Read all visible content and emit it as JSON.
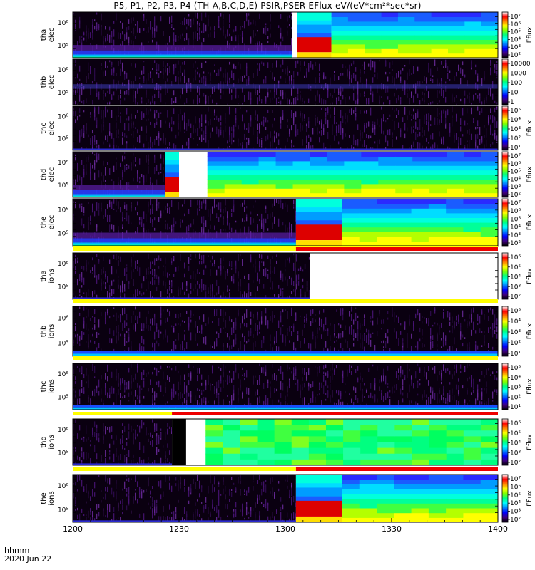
{
  "title": "P5, P1, P2, P3, P4 (TH-A,B,C,D,E) PSIR,PSER EFlux eV/(eV*cm²*sec*sr)",
  "footer": {
    "label": "hhmm",
    "date": "2020 Jun 22"
  },
  "colors": {
    "yellow": "#ffff00",
    "red": "#ee0000",
    "white": "#ffffff",
    "black": "#000000",
    "purple": "#3a0e5e",
    "blue": "#2424e8"
  },
  "chart_data": {
    "type": "heatmap",
    "x_axis": {
      "range": [
        "12:00",
        "14:00"
      ],
      "tick_labels": [
        "1200",
        "1230",
        "1300",
        "1330",
        "1400"
      ],
      "tick_values_minutes": [
        0,
        30,
        60,
        90,
        120
      ]
    },
    "panels": [
      {
        "label": [
          "tha",
          "elec"
        ],
        "y_tick_labels": [
          "10⁶",
          "10⁵"
        ],
        "colorbar": {
          "ticks": [
            "10⁷",
            "10⁶",
            "10⁵",
            "10⁴",
            "10³",
            "10²"
          ],
          "label": "Eflux"
        },
        "segments": [
          {
            "type": "noise",
            "from_minutes": 0,
            "to_minutes": 62,
            "band": "low"
          },
          {
            "type": "white",
            "from_minutes": 62,
            "to_minutes": 63.3
          },
          {
            "type": "saturated",
            "from_minutes": 63.3,
            "to_minutes": 73
          },
          {
            "type": "flux",
            "from_minutes": 73,
            "to_minutes": 120
          }
        ]
      },
      {
        "label": [
          "thb",
          "elec"
        ],
        "y_tick_labels": [
          "10⁶",
          "10⁵"
        ],
        "colorbar": {
          "ticks": [
            "10000",
            "1000",
            "100",
            "10",
            "1"
          ],
          "label": ""
        },
        "segments": [
          {
            "type": "noise",
            "from_minutes": 0,
            "to_minutes": 120,
            "band": "mid"
          }
        ]
      },
      {
        "label": [
          "thc",
          "elec"
        ],
        "y_tick_labels": [
          "10⁶",
          "10⁵"
        ],
        "colorbar": {
          "ticks": [
            "10⁵",
            "10⁴",
            "10³",
            "10²",
            "10¹"
          ],
          "label": "Eflux"
        },
        "segments": [
          {
            "type": "noise",
            "from_minutes": 0,
            "to_minutes": 120,
            "band": "dark"
          }
        ]
      },
      {
        "label": [
          "thd",
          "elec"
        ],
        "y_tick_labels": [
          "10⁶",
          "10⁵"
        ],
        "colorbar": {
          "ticks": [
            "10⁷",
            "10⁶",
            "10⁵",
            "10⁴",
            "10³",
            "10²"
          ],
          "label": "Eflux"
        },
        "segments": [
          {
            "type": "noise",
            "from_minutes": 0,
            "to_minutes": 26,
            "band": "low"
          },
          {
            "type": "saturated",
            "from_minutes": 26,
            "to_minutes": 30
          },
          {
            "type": "white",
            "from_minutes": 30,
            "to_minutes": 38
          },
          {
            "type": "flux",
            "from_minutes": 38,
            "to_minutes": 120
          }
        ]
      },
      {
        "label": [
          "the",
          "elec"
        ],
        "y_tick_labels": [
          "10⁶",
          "10⁵"
        ],
        "colorbar": {
          "ticks": [
            "10⁷",
            "10⁶",
            "10⁵",
            "10⁴",
            "10³",
            "10²"
          ],
          "label": "Eflux"
        },
        "segments": [
          {
            "type": "noise",
            "from_minutes": 0,
            "to_minutes": 63,
            "band": "low"
          },
          {
            "type": "saturated",
            "from_minutes": 63,
            "to_minutes": 76
          },
          {
            "type": "flux",
            "from_minutes": 76,
            "to_minutes": 120
          }
        ]
      },
      {
        "label": [
          "tha",
          "ions"
        ],
        "y_tick_labels": [
          "10⁶",
          "10⁵"
        ],
        "colorbar": {
          "ticks": [
            "10⁶",
            "10⁵",
            "10⁴",
            "10³",
            "10²"
          ],
          "label": "Eflux"
        },
        "mode_bar": [
          {
            "color": "yellow",
            "from_minutes": 0,
            "to_minutes": 120
          }
        ],
        "segments": [
          {
            "type": "noise",
            "from_minutes": 0,
            "to_minutes": 63,
            "band": "dark"
          },
          {
            "type": "noise",
            "from_minutes": 63,
            "to_minutes": 67,
            "band": "dark"
          },
          {
            "type": "white",
            "from_minutes": 67,
            "to_minutes": 120
          }
        ]
      },
      {
        "label": [
          "thb",
          "ions"
        ],
        "y_tick_labels": [
          "10⁶",
          "10⁵"
        ],
        "colorbar": {
          "ticks": [
            "10⁵",
            "10⁴",
            "10³",
            "10²",
            "10¹"
          ],
          "label": "Eflux"
        },
        "mode_bar": [
          {
            "color": "yellow",
            "from_minutes": 0,
            "to_minutes": 120
          }
        ],
        "segments": [
          {
            "type": "noise",
            "from_minutes": 0,
            "to_minutes": 120,
            "band": "bottomline"
          }
        ]
      },
      {
        "label": [
          "thc",
          "ions"
        ],
        "y_tick_labels": [
          "10⁶",
          "10⁵"
        ],
        "colorbar": {
          "ticks": [
            "10⁵",
            "10⁴",
            "10³",
            "10²",
            "10¹"
          ],
          "label": "Eflux"
        },
        "mode_bar": [
          {
            "color": "yellow",
            "from_minutes": 0,
            "to_minutes": 120
          }
        ],
        "segments": [
          {
            "type": "noise",
            "from_minutes": 0,
            "to_minutes": 120,
            "band": "bottomline"
          }
        ]
      },
      {
        "label": [
          "thd",
          "ions"
        ],
        "y_tick_labels": [
          "10⁶",
          "10⁵"
        ],
        "colorbar": {
          "ticks": [
            "10⁶",
            "10⁵",
            "10⁴",
            "10³",
            "10²"
          ],
          "label": "Eflux"
        },
        "mode_bar": [
          {
            "color": "yellow",
            "from_minutes": 0,
            "to_minutes": 28
          },
          {
            "color": "red",
            "from_minutes": 28,
            "to_minutes": 120
          }
        ],
        "segments": [
          {
            "type": "noise",
            "from_minutes": 0,
            "to_minutes": 28,
            "band": "dark"
          },
          {
            "type": "black",
            "from_minutes": 28,
            "to_minutes": 32
          },
          {
            "type": "white",
            "from_minutes": 32,
            "to_minutes": 37.5
          },
          {
            "type": "green",
            "from_minutes": 37.5,
            "to_minutes": 120
          }
        ]
      },
      {
        "label": [
          "the",
          "ions"
        ],
        "y_tick_labels": [
          "10⁶",
          "10⁵"
        ],
        "colorbar": {
          "ticks": [
            "10⁷",
            "10⁶",
            "10⁵",
            "10⁴",
            "10³",
            "10²"
          ],
          "label": "Eflux"
        },
        "mode_bar": [
          {
            "color": "yellow",
            "from_minutes": 0,
            "to_minutes": 63
          },
          {
            "color": "red",
            "from_minutes": 63,
            "to_minutes": 120
          }
        ],
        "segments": [
          {
            "type": "noise",
            "from_minutes": 0,
            "to_minutes": 63,
            "band": "dark"
          },
          {
            "type": "saturated",
            "from_minutes": 63,
            "to_minutes": 76
          },
          {
            "type": "flux",
            "from_minutes": 76,
            "to_minutes": 120
          }
        ]
      }
    ],
    "extra_mode_bar_before_tha_ions": [
      {
        "color": "yellow",
        "from_minutes": 0,
        "to_minutes": 63
      },
      {
        "color": "red",
        "from_minutes": 63,
        "to_minutes": 120
      }
    ]
  }
}
